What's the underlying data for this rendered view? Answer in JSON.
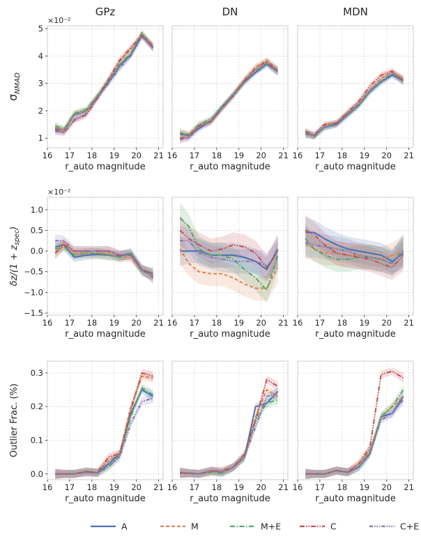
{
  "chart_data": {
    "type": "line",
    "x_shared": [
      16.35,
      16.75,
      17.2,
      17.75,
      18.25,
      18.75,
      19.25,
      19.75,
      20.25,
      20.75
    ],
    "column_titles": [
      "GPz",
      "DN",
      "MDN"
    ],
    "xlabel": "r_auto magnitude",
    "xlim": [
      16.0,
      21.2
    ],
    "xticks": [
      "16",
      "17",
      "18",
      "19",
      "20",
      "21"
    ],
    "series_styles": [
      {
        "name": "A",
        "color": "#4c72b0",
        "dash": ""
      },
      {
        "name": "M",
        "color": "#dd8452",
        "dash": "5 3"
      },
      {
        "name": "M+E",
        "color": "#55a868",
        "dash": "7 2.5 1.5 2.5"
      },
      {
        "name": "C",
        "color": "#c44e52",
        "dash": "7 2 1.5 2 1.5 2"
      },
      {
        "name": "C+E",
        "color": "#8172b3",
        "dash": "5 2 1.5 2 1.5 2 1.5 2"
      }
    ],
    "rows": [
      {
        "ylabel": "σ_NMAD",
        "multiplier": "×10⁻²",
        "ylim": [
          0.65,
          5.1
        ],
        "yticks": [
          "1",
          "2",
          "3",
          "4",
          "5"
        ],
        "ytick_values": [
          1,
          2,
          3,
          4,
          5
        ],
        "band": 0.12,
        "panels": [
          {
            "series": [
              {
                "name": "A",
                "values": [
                  1.35,
                  1.3,
                  1.85,
                  2.0,
                  2.5,
                  3.05,
                  3.65,
                  4.05,
                  4.75,
                  4.3
                ]
              },
              {
                "name": "M",
                "values": [
                  1.4,
                  1.28,
                  1.88,
                  2.0,
                  2.55,
                  3.15,
                  3.8,
                  4.25,
                  4.8,
                  4.35
                ]
              },
              {
                "name": "M+E",
                "values": [
                  1.45,
                  1.33,
                  1.9,
                  2.05,
                  2.55,
                  3.1,
                  3.7,
                  4.1,
                  4.85,
                  4.3
                ]
              },
              {
                "name": "C",
                "values": [
                  1.3,
                  1.2,
                  1.65,
                  1.85,
                  2.45,
                  3.15,
                  3.85,
                  4.3,
                  4.75,
                  4.35
                ]
              },
              {
                "name": "C+E",
                "values": [
                  1.25,
                  1.22,
                  1.68,
                  1.9,
                  2.5,
                  3.0,
                  3.55,
                  4.0,
                  4.7,
                  4.3
                ]
              }
            ]
          },
          {
            "series": [
              {
                "name": "A",
                "values": [
                  1.15,
                  1.1,
                  1.35,
                  1.65,
                  2.15,
                  2.6,
                  3.05,
                  3.4,
                  3.7,
                  3.45
                ]
              },
              {
                "name": "M",
                "values": [
                  1.2,
                  1.15,
                  1.45,
                  1.65,
                  2.1,
                  2.6,
                  3.15,
                  3.6,
                  3.85,
                  3.5
                ]
              },
              {
                "name": "M+E",
                "values": [
                  1.2,
                  1.1,
                  1.5,
                  1.7,
                  2.15,
                  2.6,
                  3.1,
                  3.45,
                  3.75,
                  3.45
                ]
              },
              {
                "name": "C",
                "values": [
                  1.0,
                  1.05,
                  1.45,
                  1.6,
                  2.1,
                  2.55,
                  3.1,
                  3.55,
                  3.8,
                  3.45
                ]
              },
              {
                "name": "C+E",
                "values": [
                  0.95,
                  1.0,
                  1.4,
                  1.6,
                  2.1,
                  2.55,
                  3.05,
                  3.45,
                  3.7,
                  3.4
                ]
              }
            ]
          },
          {
            "series": [
              {
                "name": "A",
                "values": [
                  1.15,
                  1.1,
                  1.4,
                  1.5,
                  1.85,
                  2.2,
                  2.7,
                  3.05,
                  3.3,
                  3.1
                ]
              },
              {
                "name": "M",
                "values": [
                  1.2,
                  1.08,
                  1.45,
                  1.55,
                  1.9,
                  2.25,
                  2.75,
                  3.2,
                  3.4,
                  3.15
                ]
              },
              {
                "name": "M+E",
                "values": [
                  1.2,
                  1.05,
                  1.4,
                  1.55,
                  1.9,
                  2.2,
                  2.7,
                  3.1,
                  3.35,
                  3.1
                ]
              },
              {
                "name": "C",
                "values": [
                  1.25,
                  1.1,
                  1.5,
                  1.55,
                  1.95,
                  2.35,
                  2.9,
                  3.3,
                  3.45,
                  3.1
                ]
              },
              {
                "name": "C+E",
                "values": [
                  1.15,
                  1.1,
                  1.4,
                  1.5,
                  1.85,
                  2.25,
                  2.75,
                  3.05,
                  3.35,
                  3.1
                ]
              }
            ]
          }
        ]
      },
      {
        "ylabel": "δz/(1+z_spec)",
        "multiplier": "×10⁻²",
        "ylim": [
          -1.55,
          1.3
        ],
        "yticks": [
          "−1.5",
          "−1.0",
          "−0.5",
          "0.0",
          "0.5",
          "1.0"
        ],
        "ytick_values": [
          -1.5,
          -1.0,
          -0.5,
          0.0,
          0.5,
          1.0
        ],
        "band": 0.12,
        "panels": [
          {
            "series": [
              {
                "name": "A",
                "values": [
                  0.1,
                  0.15,
                  -0.15,
                  -0.1,
                  -0.08,
                  -0.1,
                  -0.12,
                  -0.05,
                  -0.45,
                  -0.55
                ]
              },
              {
                "name": "M",
                "values": [
                  -0.05,
                  0.2,
                  -0.05,
                  -0.05,
                  -0.05,
                  -0.05,
                  -0.15,
                  -0.15,
                  -0.45,
                  -0.6
                ]
              },
              {
                "name": "M+E",
                "values": [
                  0.05,
                  0.1,
                  -0.1,
                  -0.05,
                  -0.05,
                  -0.1,
                  -0.15,
                  -0.05,
                  -0.5,
                  -0.55
                ]
              },
              {
                "name": "C",
                "values": [
                  -0.05,
                  0.15,
                  0.0,
                  0.0,
                  0.0,
                  0.0,
                  -0.1,
                  -0.1,
                  -0.45,
                  -0.6
                ]
              },
              {
                "name": "C+E",
                "values": [
                  0.25,
                  0.25,
                  0.0,
                  0.0,
                  0.0,
                  0.0,
                  -0.1,
                  -0.1,
                  -0.45,
                  -0.65
                ]
              }
            ]
          },
          {
            "series": [
              {
                "name": "A",
                "values": [
                  0.0,
                  0.0,
                  0.0,
                  -0.1,
                  -0.1,
                  -0.1,
                  -0.15,
                  -0.25,
                  -0.45,
                  0.05
                ]
              },
              {
                "name": "M",
                "values": [
                  0.05,
                  -0.3,
                  -0.5,
                  -0.55,
                  -0.55,
                  -0.65,
                  -0.8,
                  -0.9,
                  -0.9,
                  -0.4
                ]
              },
              {
                "name": "M+E",
                "values": [
                  0.8,
                  0.6,
                  0.05,
                  -0.1,
                  -0.1,
                  -0.2,
                  -0.45,
                  -0.65,
                  -0.95,
                  -0.1
                ]
              },
              {
                "name": "C",
                "values": [
                  0.5,
                  0.3,
                  0.15,
                  0.0,
                  0.05,
                  0.15,
                  0.1,
                  -0.05,
                  -0.4,
                  0.0
                ]
              },
              {
                "name": "C+E",
                "values": [
                  0.25,
                  0.25,
                  -0.05,
                  -0.15,
                  -0.2,
                  -0.25,
                  -0.25,
                  -0.25,
                  -0.35,
                  -0.1
                ]
              }
            ]
          },
          {
            "series": [
              {
                "name": "A",
                "values": [
                  0.45,
                  0.45,
                  0.3,
                  0.15,
                  0.05,
                  0.0,
                  -0.05,
                  -0.1,
                  -0.25,
                  -0.05
                ]
              },
              {
                "name": "M",
                "values": [
                  0.2,
                  0.05,
                  -0.05,
                  -0.05,
                  -0.1,
                  -0.1,
                  -0.15,
                  -0.2,
                  -0.1,
                  0.0
                ]
              },
              {
                "name": "M+E",
                "values": [
                  0.3,
                  0.05,
                  -0.1,
                  -0.2,
                  -0.2,
                  -0.15,
                  -0.15,
                  -0.2,
                  -0.3,
                  0.05
                ]
              },
              {
                "name": "C",
                "values": [
                  0.5,
                  0.4,
                  0.15,
                  -0.05,
                  -0.1,
                  -0.15,
                  -0.2,
                  -0.3,
                  -0.4,
                  -0.1
                ]
              },
              {
                "name": "C+E",
                "values": [
                  0.2,
                  0.15,
                  0.1,
                  0.05,
                  0.0,
                  -0.1,
                  -0.15,
                  -0.2,
                  -0.3,
                  0.0
                ]
              }
            ]
          }
        ]
      },
      {
        "ylabel": "Outlier Frac. (%)",
        "multiplier": "",
        "ylim": [
          -0.017,
          0.335
        ],
        "yticks": [
          "0.0",
          "0.1",
          "0.2",
          "0.3"
        ],
        "ytick_values": [
          0.0,
          0.1,
          0.2,
          0.3
        ],
        "band": 0.012,
        "panels": [
          {
            "series": [
              {
                "name": "A",
                "values": [
                  0.0,
                  0.0,
                  0.0,
                  0.005,
                  0.003,
                  0.03,
                  0.06,
                  0.18,
                  0.25,
                  0.23
                ]
              },
              {
                "name": "M",
                "values": [
                  0.0,
                  0.0,
                  0.0,
                  0.005,
                  0.005,
                  0.04,
                  0.06,
                  0.2,
                  0.29,
                  0.285
                ]
              },
              {
                "name": "M+E",
                "values": [
                  0.0,
                  0.0,
                  0.0,
                  0.008,
                  0.003,
                  0.02,
                  0.055,
                  0.17,
                  0.255,
                  0.235
                ]
              },
              {
                "name": "C",
                "values": [
                  0.0,
                  0.0,
                  0.0,
                  0.008,
                  0.003,
                  0.05,
                  0.06,
                  0.19,
                  0.3,
                  0.29
                ]
              },
              {
                "name": "C+E",
                "values": [
                  0.0,
                  0.0,
                  0.0,
                  0.005,
                  0.003,
                  0.025,
                  0.05,
                  0.15,
                  0.215,
                  0.225
                ]
              }
            ]
          },
          {
            "series": [
              {
                "name": "A",
                "values": [
                  0.003,
                  0.002,
                  0.0,
                  0.01,
                  0.005,
                  0.02,
                  0.05,
                  0.2,
                  0.21,
                  0.245
                ]
              },
              {
                "name": "M",
                "values": [
                  0.005,
                  0.003,
                  0.0,
                  0.01,
                  0.005,
                  0.02,
                  0.05,
                  0.17,
                  0.25,
                  0.23
                ]
              },
              {
                "name": "M+E",
                "values": [
                  0.003,
                  0.002,
                  0.0,
                  0.005,
                  0.002,
                  0.02,
                  0.05,
                  0.16,
                  0.21,
                  0.22
                ]
              },
              {
                "name": "C",
                "values": [
                  0.002,
                  0.002,
                  0.0,
                  0.008,
                  0.01,
                  0.02,
                  0.06,
                  0.16,
                  0.28,
                  0.26
                ]
              },
              {
                "name": "C+E",
                "values": [
                  0.003,
                  0.002,
                  0.0,
                  0.01,
                  0.005,
                  0.02,
                  0.05,
                  0.14,
                  0.23,
                  0.24
                ]
              }
            ]
          },
          {
            "series": [
              {
                "name": "A",
                "values": [
                  0.0,
                  0.0,
                  0.0,
                  0.01,
                  0.005,
                  0.02,
                  0.06,
                  0.17,
                  0.18,
                  0.23
                ]
              },
              {
                "name": "M",
                "values": [
                  0.0,
                  0.0,
                  0.0,
                  0.01,
                  0.005,
                  0.03,
                  0.07,
                  0.17,
                  0.2,
                  0.23
                ]
              },
              {
                "name": "M+E",
                "values": [
                  0.0,
                  0.0,
                  0.0,
                  0.01,
                  0.005,
                  0.02,
                  0.065,
                  0.17,
                  0.2,
                  0.25
                ]
              },
              {
                "name": "C",
                "values": [
                  0.0,
                  0.0,
                  0.0,
                  0.01,
                  0.005,
                  0.03,
                  0.08,
                  0.295,
                  0.305,
                  0.285
                ]
              },
              {
                "name": "C+E",
                "values": [
                  0.0,
                  0.0,
                  0.0,
                  0.01,
                  0.005,
                  0.02,
                  0.06,
                  0.16,
                  0.18,
                  0.22
                ]
              }
            ]
          }
        ]
      }
    ]
  }
}
